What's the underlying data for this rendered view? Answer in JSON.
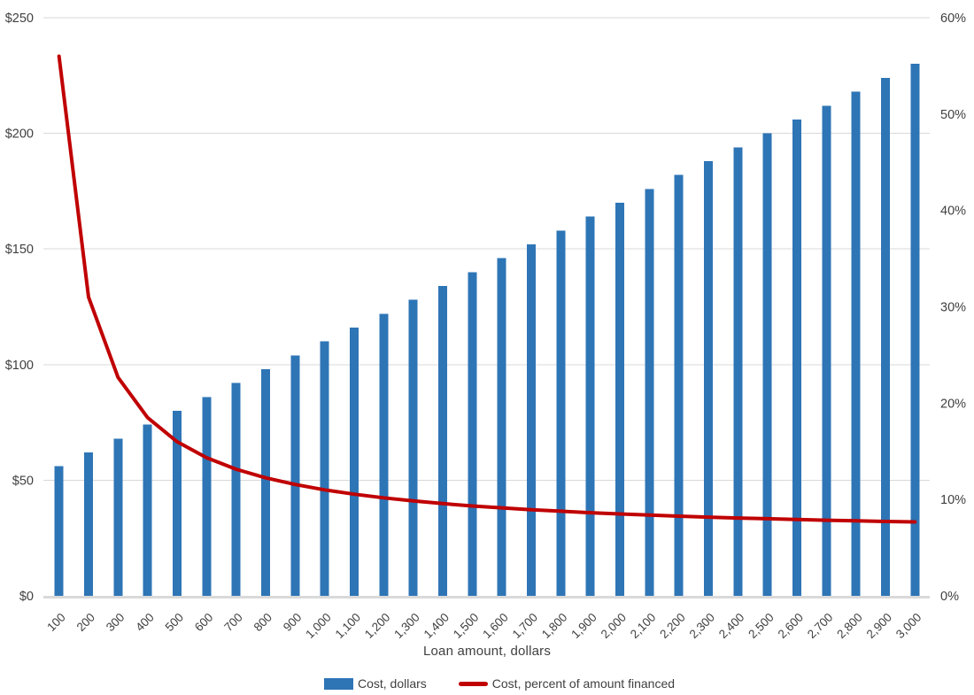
{
  "chart_data": {
    "type": "bar",
    "combo": "bar+line",
    "title": "",
    "xlabel": "Loan amount, dollars",
    "ylabel_left": "Cost, dollars",
    "ylabel_right": "Cost, percent of amount financed",
    "categories": [
      "100",
      "200",
      "300",
      "400",
      "500",
      "600",
      "700",
      "800",
      "900",
      "1,000",
      "1,100",
      "1,200",
      "1,300",
      "1,400",
      "1,500",
      "1,600",
      "1,700",
      "1,800",
      "1,900",
      "2,000",
      "2,100",
      "2,200",
      "2,300",
      "2,400",
      "2,500",
      "2,600",
      "2,700",
      "2,800",
      "2,900",
      "3,000"
    ],
    "series": [
      {
        "name": "Cost, dollars",
        "type": "bar",
        "axis": "left",
        "color": "#2E75B6",
        "values": [
          56,
          62,
          68,
          74,
          80,
          86,
          92,
          98,
          104,
          110,
          116,
          122,
          128,
          134,
          140,
          146,
          152,
          158,
          164,
          170,
          176,
          182,
          188,
          194,
          200,
          206,
          212,
          218,
          224,
          230
        ]
      },
      {
        "name": "Cost, percent of amount financed",
        "type": "line",
        "axis": "right",
        "color": "#C00000",
        "values": [
          56.0,
          31.0,
          22.67,
          18.5,
          16.0,
          14.33,
          13.14,
          12.25,
          11.56,
          11.0,
          10.55,
          10.17,
          9.85,
          9.57,
          9.33,
          9.13,
          8.94,
          8.78,
          8.63,
          8.5,
          8.38,
          8.27,
          8.17,
          8.08,
          8.0,
          7.92,
          7.85,
          7.79,
          7.72,
          7.67
        ]
      }
    ],
    "left_axis": {
      "min": 0,
      "max": 250,
      "step": 50,
      "tick_labels": [
        "$0",
        "$50",
        "$100",
        "$150",
        "$200",
        "$250"
      ]
    },
    "right_axis": {
      "min": 0,
      "max": 60,
      "step": 10,
      "tick_labels": [
        "0%",
        "10%",
        "20%",
        "30%",
        "40%",
        "50%",
        "60%"
      ]
    },
    "grid": "horizontal gridlines at left-axis intervals",
    "legend_position": "bottom",
    "colors": {
      "gridline": "#D9D9D9",
      "axis_line": "#D9D9D9",
      "text": "#404040",
      "background": "#FFFFFF"
    }
  }
}
